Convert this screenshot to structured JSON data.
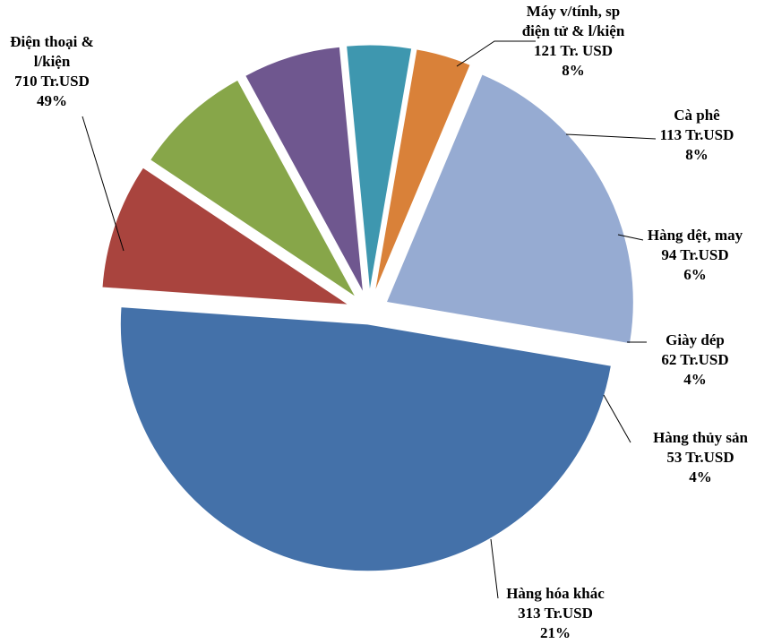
{
  "chart_data": {
    "type": "pie",
    "exploded": true,
    "slices": [
      {
        "label_lines": [
          "Máy v/tính, sp",
          "điện tử & l/kiện"
        ],
        "value_text": "121 Tr. USD",
        "pct_text": "8%",
        "value": 121,
        "pct": 8,
        "color": "#A9443E"
      },
      {
        "label_lines": [
          "Cà phê"
        ],
        "value_text": "113 Tr.USD",
        "pct_text": "8%",
        "value": 113,
        "pct": 8,
        "color": "#87A649"
      },
      {
        "label_lines": [
          "Hàng dệt, may"
        ],
        "value_text": "94 Tr.USD",
        "pct_text": "6%",
        "value": 94,
        "pct": 6,
        "color": "#6F578F"
      },
      {
        "label_lines": [
          "Giày dép"
        ],
        "value_text": "62 Tr.USD",
        "pct_text": "4%",
        "value": 62,
        "pct": 4,
        "color": "#3E97AF"
      },
      {
        "label_lines": [
          "Hàng thủy sản"
        ],
        "value_text": "53 Tr.USD",
        "pct_text": "4%",
        "value": 53,
        "pct": 4,
        "color": "#D98139"
      },
      {
        "label_lines": [
          "Hàng hóa khác"
        ],
        "value_text": "313 Tr.USD",
        "pct_text": "21%",
        "value": 313,
        "pct": 21,
        "color": "#96ABD2"
      },
      {
        "label_lines": [
          "Điện thoại &",
          "l/kiện"
        ],
        "value_text": "710 Tr.USD",
        "pct_text": "49%",
        "value": 710,
        "pct": 49,
        "color": "#4471A9"
      }
    ]
  }
}
